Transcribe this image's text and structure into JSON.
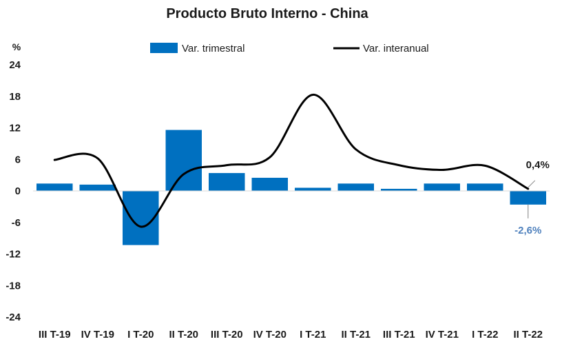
{
  "chart_data": {
    "type": "bar",
    "title": "Producto Bruto Interno - China",
    "unit_label": "%",
    "categories": [
      "III T-19",
      "IV T-19",
      "I T-20",
      "II T-20",
      "III T-20",
      "IV T-20",
      "I T-21",
      "II T-21",
      "III T-21",
      "IV T-21",
      "I T-22",
      "II T-22"
    ],
    "ylim": [
      -24,
      24
    ],
    "yticks": [
      "24",
      "18",
      "12",
      "6",
      "0",
      "-6",
      "-12",
      "-18",
      "-24"
    ],
    "series": [
      {
        "name": "Var. trimestral",
        "type": "bar",
        "color": "#0070c0",
        "values": [
          1.4,
          1.2,
          -10.3,
          11.6,
          3.4,
          2.5,
          0.6,
          1.4,
          0.4,
          1.4,
          1.4,
          -2.6
        ]
      },
      {
        "name": "Var. interanual",
        "type": "line",
        "color": "#000000",
        "values": [
          5.9,
          6.2,
          -6.8,
          3.2,
          4.9,
          6.4,
          18.3,
          7.9,
          4.9,
          4.0,
          4.8,
          0.4
        ]
      }
    ],
    "annotations": [
      {
        "series": "Var. interanual",
        "category": "II T-22",
        "text": "0,4%"
      },
      {
        "series": "Var. trimestral",
        "category": "II T-22",
        "text": "-2,6%"
      }
    ],
    "legend": "top-center",
    "grid": false
  }
}
